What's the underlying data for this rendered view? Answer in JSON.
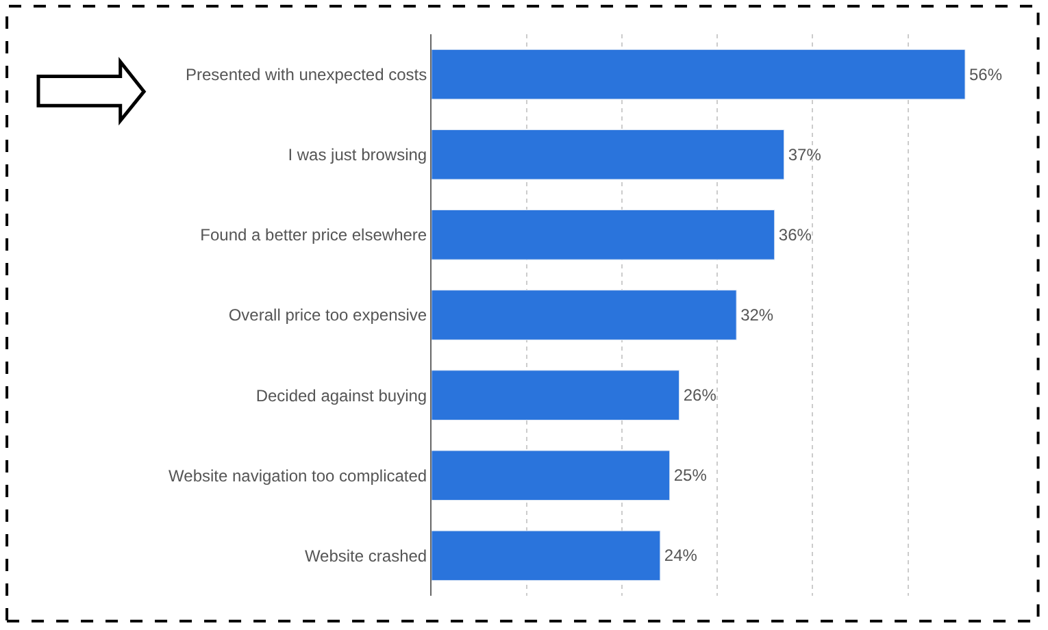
{
  "chart_data": {
    "type": "bar",
    "orientation": "horizontal",
    "categories": [
      "Presented with unexpected costs",
      "I was just browsing",
      "Found a better price elsewhere",
      "Overall price too expensive",
      "Decided against buying",
      "Website navigation too complicated",
      "Website crashed"
    ],
    "values": [
      56,
      37,
      36,
      32,
      26,
      25,
      24
    ],
    "value_labels": [
      "56%",
      "37%",
      "36%",
      "32%",
      "26%",
      "25%",
      "24%"
    ],
    "color": "#2a74dc",
    "grid": "x",
    "tick_labels": "y",
    "legend": false
  }
}
